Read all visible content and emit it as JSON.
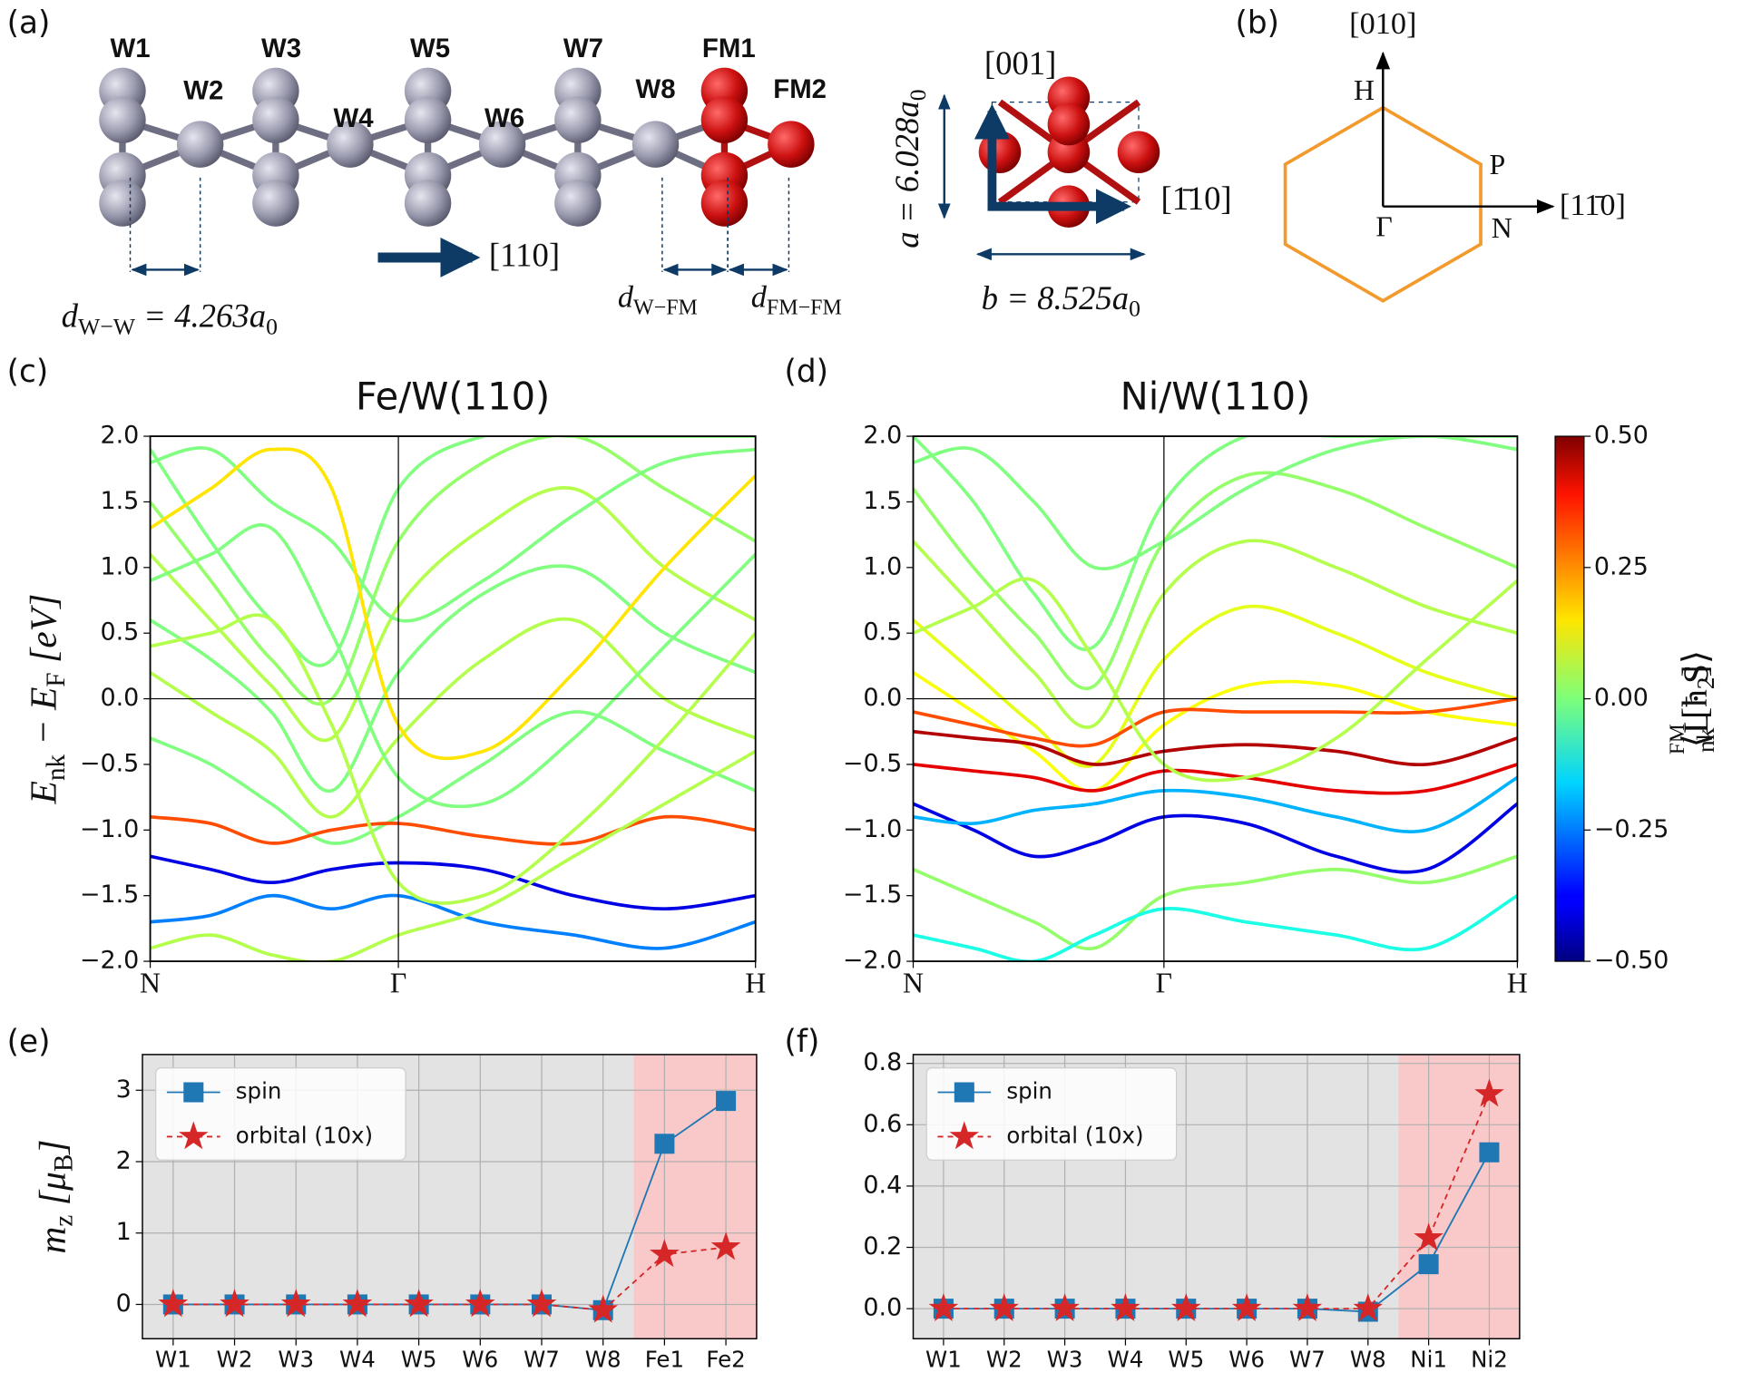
{
  "panel_labels": [
    "(a)",
    "(b)",
    "(c)",
    "(d)",
    "(e)",
    "(f)"
  ],
  "structure": {
    "atoms": [
      "W1",
      "W2",
      "W3",
      "W4",
      "W5",
      "W6",
      "W7",
      "W8",
      "FM1",
      "FM2"
    ],
    "direction": "[110]",
    "d_ww": [
      "d",
      "W−W",
      " = 4.263a",
      "0"
    ],
    "d_wfm": [
      "d",
      "W−FM"
    ],
    "d_fmfm": [
      "d",
      "FM−FM"
    ],
    "axis_001": "[001]",
    "axis_110": "[1̄10]",
    "a_label": [
      "a = 6.028a",
      "0"
    ],
    "b_label": [
      "b = 8.525a",
      "0"
    ]
  },
  "brillouin_zone": {
    "axis_y": "[010]",
    "axis_x": "[11̄0]",
    "points": [
      "H",
      "P",
      "Γ",
      "N"
    ]
  },
  "chart_data": [
    {
      "type": "bands",
      "title": "Fe/W(110)",
      "y_label": [
        "E",
        "nk",
        " − E",
        "F",
        " [eV]"
      ],
      "x": [
        0,
        0.1,
        0.2,
        0.3,
        0.41,
        0.55,
        0.7,
        0.85,
        1.0
      ],
      "xlim": [
        0,
        1
      ],
      "xticks": [
        {
          "value": 0,
          "label": "N"
        },
        {
          "value": 0.41,
          "label": "Γ"
        },
        {
          "value": 1,
          "label": "H"
        }
      ],
      "ylim": [
        -2,
        2
      ],
      "yticks": [
        {
          "value": -2,
          "label": "−2.0"
        },
        {
          "value": -1.5,
          "label": "−1.5"
        },
        {
          "value": -1,
          "label": "−1.0"
        },
        {
          "value": -0.5,
          "label": "−0.5"
        },
        {
          "value": 0,
          "label": "0.0"
        },
        {
          "value": 0.5,
          "label": "0.5"
        },
        {
          "value": 1,
          "label": "1.0"
        },
        {
          "value": 1.5,
          "label": "1.5"
        },
        {
          "value": 2,
          "label": "2.0"
        }
      ],
      "clim": [
        -0.5,
        0.5
      ],
      "colormap": "jet",
      "bands": [
        {
          "values": [
            1.9,
            1.2,
            0.6,
            0.3,
            1.6,
            2.0,
            2.0,
            2.0,
            2.0
          ],
          "ls": 0
        },
        {
          "values": [
            1.5,
            0.9,
            0.3,
            0.0,
            1.2,
            1.8,
            2.0,
            1.6,
            1.2
          ],
          "ls": 0.02
        },
        {
          "values": [
            1.1,
            0.6,
            0.1,
            -0.3,
            0.7,
            1.3,
            1.6,
            1.0,
            0.6
          ],
          "ls": 0.05
        },
        {
          "values": [
            0.6,
            0.3,
            -0.1,
            -0.7,
            0.2,
            0.8,
            1.0,
            0.5,
            0.2
          ],
          "ls": 0
        },
        {
          "values": [
            0.2,
            -0.1,
            -0.4,
            -0.9,
            -0.3,
            0.3,
            0.6,
            0.0,
            -0.3
          ],
          "ls": 0.05
        },
        {
          "values": [
            -0.3,
            -0.5,
            -0.8,
            -1.1,
            -0.9,
            -0.5,
            -0.1,
            -0.4,
            -0.7
          ],
          "ls": 0
        },
        {
          "values": [
            -0.9,
            -0.95,
            -1.1,
            -1.0,
            -0.95,
            -1.05,
            -1.1,
            -0.9,
            -1.0
          ],
          "ls": 0.3
        },
        {
          "values": [
            -1.2,
            -1.3,
            -1.4,
            -1.3,
            -1.25,
            -1.3,
            -1.5,
            -1.6,
            -1.5
          ],
          "ls": -0.4
        },
        {
          "values": [
            -1.7,
            -1.65,
            -1.5,
            -1.6,
            -1.5,
            -1.7,
            -1.8,
            -1.9,
            -1.7
          ],
          "ls": -0.25
        },
        {
          "values": [
            -1.9,
            -1.8,
            -1.95,
            -2.0,
            -1.8,
            -1.6,
            -1.2,
            -0.8,
            -0.4
          ],
          "ls": 0.05
        },
        {
          "values": [
            1.8,
            1.9,
            1.5,
            1.2,
            0.6,
            0.9,
            1.4,
            1.8,
            1.9
          ],
          "ls": 0
        },
        {
          "values": [
            1.3,
            1.6,
            1.9,
            1.6,
            -0.2,
            -0.4,
            0.2,
            1.0,
            1.7
          ],
          "ls": 0.15
        },
        {
          "values": [
            0.9,
            1.1,
            1.3,
            0.5,
            -0.6,
            -0.8,
            -0.3,
            0.4,
            1.1
          ],
          "ls": 0
        },
        {
          "values": [
            0.4,
            0.5,
            0.6,
            -0.2,
            -1.4,
            -1.5,
            -1.0,
            -0.3,
            0.5
          ],
          "ls": 0.05
        }
      ]
    },
    {
      "type": "bands",
      "title": "Ni/W(110)",
      "x": [
        0,
        0.1,
        0.2,
        0.3,
        0.415,
        0.55,
        0.7,
        0.85,
        1.0
      ],
      "xlim": [
        0,
        1
      ],
      "xticks": [
        {
          "value": 0,
          "label": "N"
        },
        {
          "value": 0.415,
          "label": "Γ"
        },
        {
          "value": 1,
          "label": "H"
        }
      ],
      "ylim": [
        -2,
        2
      ],
      "yticks": [
        {
          "value": -2,
          "label": "−2.0"
        },
        {
          "value": -1.5,
          "label": "−1.5"
        },
        {
          "value": -1,
          "label": "−1.0"
        },
        {
          "value": -0.5,
          "label": "−0.5"
        },
        {
          "value": 0,
          "label": "0.0"
        },
        {
          "value": 0.5,
          "label": "0.5"
        },
        {
          "value": 1,
          "label": "1.0"
        },
        {
          "value": 1.5,
          "label": "1.5"
        },
        {
          "value": 2,
          "label": "2.0"
        }
      ],
      "clim": [
        -0.5,
        0.5
      ],
      "colormap": "jet",
      "colorbar": {
        "label": [
          "⟨L · S⟩",
          "nk",
          " [ħ",
          "2",
          "]"
        ],
        "label_sup": "FM",
        "ticks": [
          {
            "value": -0.5,
            "label": "−0.50"
          },
          {
            "value": -0.25,
            "label": "−0.25"
          },
          {
            "value": 0,
            "label": "0.00"
          },
          {
            "value": 0.25,
            "label": "0.25"
          },
          {
            "value": 0.5,
            "label": "0.50"
          }
        ]
      },
      "bands": [
        {
          "values": [
            2.0,
            1.5,
            0.8,
            0.4,
            1.5,
            2.0,
            2.0,
            2.0,
            2.0
          ],
          "ls": 0
        },
        {
          "values": [
            1.6,
            1.0,
            0.5,
            0.1,
            1.2,
            1.7,
            1.6,
            1.3,
            1.0
          ],
          "ls": 0.02
        },
        {
          "values": [
            1.2,
            0.7,
            0.2,
            -0.2,
            0.8,
            1.2,
            1.0,
            0.7,
            0.5
          ],
          "ls": 0.05
        },
        {
          "values": [
            0.6,
            0.2,
            -0.2,
            -0.5,
            0.3,
            0.7,
            0.5,
            0.2,
            0.0
          ],
          "ls": 0.1
        },
        {
          "values": [
            0.2,
            -0.1,
            -0.4,
            -0.7,
            -0.2,
            0.1,
            0.1,
            -0.1,
            -0.2
          ],
          "ls": 0.12
        },
        {
          "values": [
            -0.1,
            -0.2,
            -0.3,
            -0.35,
            -0.1,
            -0.1,
            -0.1,
            -0.1,
            0.0
          ],
          "ls": 0.3
        },
        {
          "values": [
            -0.25,
            -0.3,
            -0.35,
            -0.5,
            -0.4,
            -0.35,
            -0.4,
            -0.5,
            -0.3
          ],
          "ls": 0.45
        },
        {
          "values": [
            -0.5,
            -0.55,
            -0.6,
            -0.7,
            -0.55,
            -0.6,
            -0.7,
            -0.7,
            -0.5
          ],
          "ls": 0.4
        },
        {
          "values": [
            -0.8,
            -1.0,
            -1.2,
            -1.1,
            -0.9,
            -0.95,
            -1.2,
            -1.3,
            -0.8
          ],
          "ls": -0.4
        },
        {
          "values": [
            -0.9,
            -0.95,
            -0.85,
            -0.8,
            -0.7,
            -0.75,
            -0.9,
            -1.0,
            -0.6
          ],
          "ls": -0.2
        },
        {
          "values": [
            -1.3,
            -1.5,
            -1.7,
            -1.9,
            -1.5,
            -1.4,
            -1.3,
            -1.4,
            -1.2
          ],
          "ls": 0.02
        },
        {
          "values": [
            -1.8,
            -1.9,
            -2.0,
            -1.8,
            -1.6,
            -1.7,
            -1.8,
            -1.9,
            -1.5
          ],
          "ls": -0.1
        },
        {
          "values": [
            1.8,
            1.9,
            1.5,
            1.0,
            1.2,
            1.6,
            1.9,
            2.0,
            1.9
          ],
          "ls": 0
        },
        {
          "values": [
            0.5,
            0.7,
            0.9,
            0.3,
            -0.5,
            -0.6,
            -0.3,
            0.3,
            0.9
          ],
          "ls": 0.05
        }
      ]
    },
    {
      "type": "line",
      "y_label": [
        "m",
        "z",
        " [μ",
        "B",
        "]"
      ],
      "categories": [
        "W1",
        "W2",
        "W3",
        "W4",
        "W5",
        "W6",
        "W7",
        "W8",
        "Fe1",
        "Fe2"
      ],
      "ylim": [
        -0.48,
        3.5
      ],
      "yticks": [
        0,
        1,
        2,
        3
      ],
      "grid": true,
      "legend": "upper left",
      "shaded_spans": [
        {
          "start": 0,
          "end": 7,
          "color": "#e3e3e3"
        },
        {
          "start": 8,
          "end": 9,
          "color": "#f9c9c9"
        }
      ],
      "series": [
        {
          "name": "spin",
          "color": "#1f77b4",
          "marker": "square",
          "dashed": false,
          "values": [
            0,
            0,
            0,
            0,
            0,
            0,
            0,
            -0.08,
            2.25,
            2.85
          ]
        },
        {
          "name": "orbital (10x)",
          "color": "#d62728",
          "marker": "star",
          "dashed": true,
          "values": [
            0,
            0,
            0,
            0,
            0,
            0,
            0,
            -0.08,
            0.7,
            0.8
          ]
        }
      ]
    },
    {
      "type": "line",
      "categories": [
        "W1",
        "W2",
        "W3",
        "W4",
        "W5",
        "W6",
        "W7",
        "W8",
        "Ni1",
        "Ni2"
      ],
      "ylim": [
        -0.098,
        0.829
      ],
      "yticks": [
        {
          "value": 0,
          "label": "0.0"
        },
        {
          "value": 0.2,
          "label": "0.2"
        },
        {
          "value": 0.4,
          "label": "0.4"
        },
        {
          "value": 0.6,
          "label": "0.6"
        },
        {
          "value": 0.8,
          "label": "0.8"
        }
      ],
      "grid": true,
      "legend": "upper left",
      "shaded_spans": [
        {
          "start": 0,
          "end": 7,
          "color": "#e3e3e3"
        },
        {
          "start": 8,
          "end": 9,
          "color": "#f9c9c9"
        }
      ],
      "series": [
        {
          "name": "spin",
          "color": "#1f77b4",
          "marker": "square",
          "dashed": false,
          "values": [
            0,
            0,
            0,
            0,
            0,
            0,
            0,
            -0.01,
            0.145,
            0.51
          ]
        },
        {
          "name": "orbital (10x)",
          "color": "#d62728",
          "marker": "star",
          "dashed": true,
          "values": [
            0,
            0,
            0,
            0,
            0,
            0,
            0,
            0,
            0.23,
            0.7
          ]
        }
      ]
    }
  ]
}
